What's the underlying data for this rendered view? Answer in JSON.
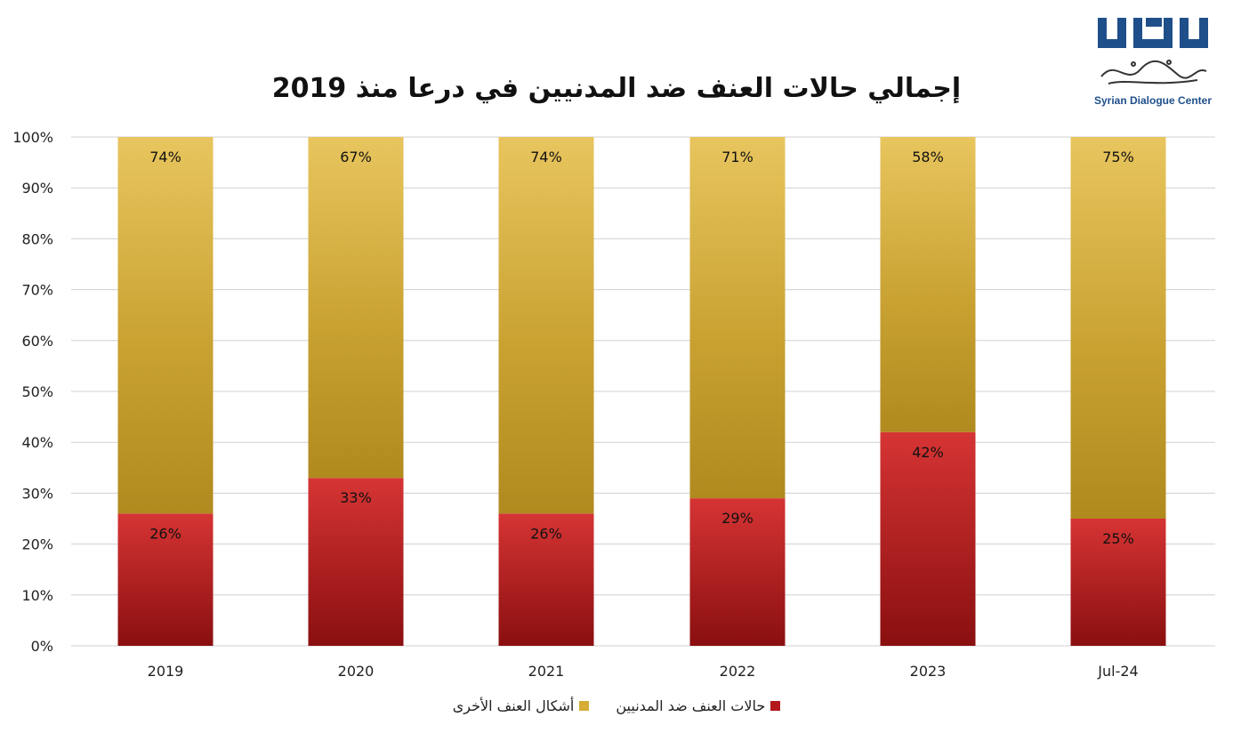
{
  "chart_data": {
    "type": "bar",
    "stacked": true,
    "title": "إجمالي حالات العنف ضد المدنيين في درعا منذ 2019",
    "categories": [
      "2019",
      "2020",
      "2021",
      "2022",
      "2023",
      "Jul-24"
    ],
    "series": [
      {
        "name": "حالات العنف ضد المدنيين",
        "values": [
          26,
          33,
          26,
          29,
          42,
          25
        ],
        "color": "#b3181c"
      },
      {
        "name": "أشكال العنف الأخرى",
        "values": [
          74,
          67,
          74,
          71,
          58,
          75
        ],
        "color": "#d4ac36"
      }
    ],
    "data_labels": {
      "civilians": [
        "26%",
        "33%",
        "26%",
        "29%",
        "42%",
        "25%"
      ],
      "other": [
        "74%",
        "67%",
        "74%",
        "71%",
        "58%",
        "75%"
      ]
    },
    "y_ticks": [
      "0%",
      "10%",
      "20%",
      "30%",
      "40%",
      "50%",
      "60%",
      "70%",
      "80%",
      "90%",
      "100%"
    ],
    "ylim": [
      0,
      100
    ],
    "grid": true,
    "legend_position": "bottom"
  },
  "logo": {
    "name": "Syrian Dialogue Center",
    "color": "#1f4f8a"
  }
}
